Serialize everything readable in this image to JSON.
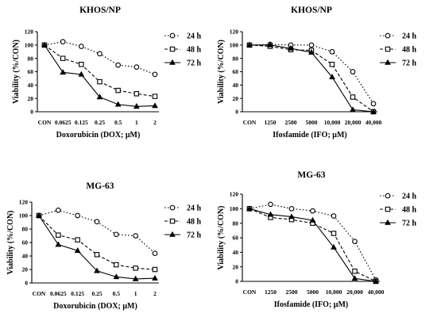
{
  "chart_data": [
    {
      "type": "line",
      "title": "KHOS/NP",
      "xlabel": "Doxorubicin (DOX; μM)",
      "ylabel": "Viability (%/CON)",
      "categories": [
        "CON",
        "0.0625",
        "0.125",
        "0.25",
        "0.5",
        "1",
        "2"
      ],
      "ylim": [
        0,
        120
      ],
      "yticks": [
        "0",
        "20",
        "40",
        "60",
        "80",
        "100",
        "120"
      ],
      "legend_position": "right",
      "series": [
        {
          "name": "24 h",
          "marker": "circle",
          "style": "dotted",
          "values": [
            100,
            105,
            98,
            87,
            70,
            67,
            56
          ]
        },
        {
          "name": "48 h",
          "marker": "square",
          "style": "dashed",
          "values": [
            100,
            80,
            71,
            45,
            32,
            27,
            23
          ]
        },
        {
          "name": "72 h",
          "marker": "triangle",
          "style": "solid",
          "values": [
            100,
            59,
            56,
            22,
            11,
            8,
            9
          ]
        }
      ]
    },
    {
      "type": "line",
      "title": "KHOS/NP",
      "xlabel": "Ifosfamide (IFO; μM)",
      "ylabel": "Viability (%/CON)",
      "categories": [
        "CON",
        "1250",
        "2500",
        "5000",
        "10,000",
        "20,000",
        "40,000"
      ],
      "ylim": [
        0,
        120
      ],
      "yticks": [
        "0",
        "20",
        "40",
        "60",
        "80",
        "100",
        "120"
      ],
      "legend_position": "right",
      "series": [
        {
          "name": "24 h",
          "marker": "circle",
          "style": "dotted",
          "values": [
            100,
            101,
            100,
            100,
            90,
            60,
            12
          ]
        },
        {
          "name": "48 h",
          "marker": "square",
          "style": "dashed",
          "values": [
            100,
            98,
            93,
            92,
            71,
            22,
            0
          ]
        },
        {
          "name": "72 h",
          "marker": "triangle",
          "style": "solid",
          "values": [
            100,
            100,
            95,
            89,
            52,
            3,
            0
          ]
        }
      ]
    },
    {
      "type": "line",
      "title": "MG-63",
      "xlabel": "Doxorubicin (DOX; μM)",
      "ylabel": "Viability (%/CON)",
      "categories": [
        "CON",
        "0.0625",
        "0.125",
        "0.25",
        "0.5",
        "1",
        "2"
      ],
      "ylim": [
        0,
        120
      ],
      "yticks": [
        "0",
        "20",
        "40",
        "60",
        "80",
        "100",
        "120"
      ],
      "legend_position": "right",
      "series": [
        {
          "name": "24 h",
          "marker": "circle",
          "style": "dotted",
          "values": [
            100,
            108,
            100,
            91,
            72,
            70,
            44
          ]
        },
        {
          "name": "48 h",
          "marker": "square",
          "style": "dashed",
          "values": [
            100,
            71,
            64,
            42,
            27,
            22,
            20
          ]
        },
        {
          "name": "72 h",
          "marker": "triangle",
          "style": "solid",
          "values": [
            100,
            57,
            48,
            18,
            9,
            6,
            7
          ]
        }
      ]
    },
    {
      "type": "line",
      "title": "MG-63",
      "xlabel": "Ifosfamide (IFO; μM)",
      "ylabel": "Viability (%/CON)",
      "categories": [
        "CON",
        "1250",
        "2500",
        "5000",
        "10,000",
        "20,000",
        "40,000"
      ],
      "ylim": [
        0,
        120
      ],
      "yticks": [
        "0",
        "20",
        "40",
        "60",
        "80",
        "100",
        "120"
      ],
      "legend_position": "right",
      "series": [
        {
          "name": "24 h",
          "marker": "circle",
          "style": "dotted",
          "values": [
            100,
            106,
            100,
            97,
            90,
            55,
            2
          ]
        },
        {
          "name": "48 h",
          "marker": "square",
          "style": "dashed",
          "values": [
            100,
            88,
            85,
            80,
            66,
            14,
            0
          ]
        },
        {
          "name": "72 h",
          "marker": "triangle",
          "style": "solid",
          "values": [
            100,
            92,
            89,
            84,
            47,
            4,
            0
          ]
        }
      ]
    }
  ]
}
